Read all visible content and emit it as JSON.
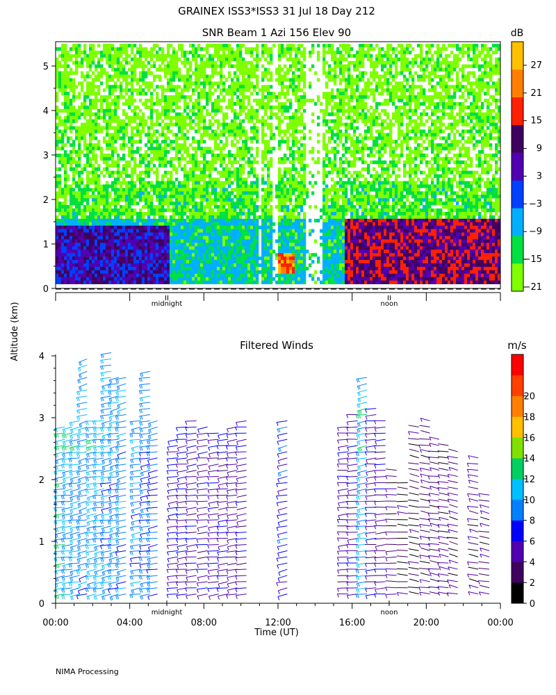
{
  "page": {
    "title": "GRAINEX ISS3*ISS3  31 Jul 18 Day 212",
    "shared_ylabel": "Altitude (km)",
    "footer": "NIMA Processing"
  },
  "chart_data": [
    {
      "type": "heatmap",
      "title": "SNR Beam 1 Azi 156 Elev 90",
      "ylabel": "Altitude (km)",
      "ylim": [
        0,
        5.5
      ],
      "yticks": [
        "0",
        "1",
        "2",
        "3",
        "4",
        "5"
      ],
      "xlim_hours": [
        0,
        24
      ],
      "x_annotations": [
        "midnight",
        "noon"
      ],
      "colorbar": {
        "unit": "dB",
        "tick_labels": [
          "27",
          "21",
          "15",
          "9",
          "3",
          "−3",
          "−9",
          "−15",
          "−21"
        ],
        "colors": [
          "#7fff00",
          "#00e040",
          "#00b0ff",
          "#0040ff",
          "#5000b0",
          "#400060",
          "#ff2000",
          "#ff8000",
          "#ffc000"
        ]
      },
      "profile_description": {
        "background_db": -21,
        "layers": [
          {
            "alt_low_km": 0.1,
            "alt_high_km": 1.4,
            "db": [
              -3,
              9
            ],
            "hours": [
              0,
              6
            ],
            "note": "strong low-level boundary layer echo, early hours"
          },
          {
            "alt_low_km": 0.1,
            "alt_high_km": 1.6,
            "db": [
              3,
              15
            ],
            "hours": [
              15.5,
              24
            ],
            "note": "growing afternoon boundary layer"
          },
          {
            "alt_low_km": 0.3,
            "alt_high_km": 0.8,
            "db": [
              15,
              27
            ],
            "hours": [
              12,
              12.8
            ],
            "note": "peak echo"
          }
        ]
      }
    },
    {
      "type": "scatter",
      "title": "Filtered Winds",
      "xlabel": "Time (UT)",
      "ylabel": "Altitude (km)",
      "ylim": [
        0,
        4
      ],
      "yticks": [
        "0",
        "1",
        "2",
        "3",
        "4"
      ],
      "xticks": [
        "00:00",
        "04:00",
        "08:00",
        "12:00",
        "16:00",
        "20:00",
        "00:00"
      ],
      "x_annotations": [
        "midnight",
        "noon"
      ],
      "colorbar": {
        "unit": "m/s",
        "tick_labels": [
          "20",
          "18",
          "16",
          "14",
          "12",
          "10",
          "8",
          "6",
          "4",
          "2",
          "0"
        ],
        "colors": [
          "#000000",
          "#400060",
          "#5000b0",
          "#0000ff",
          "#0080ff",
          "#00c0ff",
          "#00d060",
          "#80e000",
          "#ffc000",
          "#ff8000",
          "#ff4000",
          "#ff0000"
        ]
      },
      "wind_profiles": [
        {
          "hour": 0.5,
          "top_km": 2.9,
          "speed": 9,
          "dir": 250
        },
        {
          "hour": 0.9,
          "top_km": 2.9,
          "speed": 8,
          "dir": 250
        },
        {
          "hour": 1.3,
          "top_km": 3.0,
          "speed": 8,
          "dir": 250
        },
        {
          "hour": 1.7,
          "top_km": 4.0,
          "speed": 7,
          "dir": 240
        },
        {
          "hour": 2.2,
          "top_km": 3.0,
          "speed": 8,
          "dir": 250
        },
        {
          "hour": 2.6,
          "top_km": 3.0,
          "speed": 8,
          "dir": 250
        },
        {
          "hour": 3.0,
          "top_km": 4.1,
          "speed": 7,
          "dir": 245
        },
        {
          "hour": 3.4,
          "top_km": 3.7,
          "speed": 7,
          "dir": 245
        },
        {
          "hour": 3.8,
          "top_km": 3.7,
          "speed": 7,
          "dir": 245
        },
        {
          "hour": 4.6,
          "top_km": 3.0,
          "speed": 7,
          "dir": 250
        },
        {
          "hour": 5.1,
          "top_km": 3.8,
          "speed": 6,
          "dir": 250
        },
        {
          "hour": 5.5,
          "top_km": 3.0,
          "speed": 6,
          "dir": 250
        },
        {
          "hour": 6.6,
          "top_km": 2.7,
          "speed": 4,
          "dir": 255
        },
        {
          "hour": 7.1,
          "top_km": 2.9,
          "speed": 4,
          "dir": 255
        },
        {
          "hour": 7.6,
          "top_km": 3.0,
          "speed": 3,
          "dir": 255
        },
        {
          "hour": 8.2,
          "top_km": 2.9,
          "speed": 3,
          "dir": 255
        },
        {
          "hour": 8.8,
          "top_km": 2.8,
          "speed": 3,
          "dir": 255
        },
        {
          "hour": 9.3,
          "top_km": 2.8,
          "speed": 3,
          "dir": 255
        },
        {
          "hour": 9.8,
          "top_km": 2.9,
          "speed": 3,
          "dir": 255
        },
        {
          "hour": 10.3,
          "top_km": 3.0,
          "speed": 3,
          "dir": 255
        },
        {
          "hour": 12.5,
          "top_km": 3.0,
          "speed": 5,
          "dir": 245
        },
        {
          "hour": 15.8,
          "top_km": 2.9,
          "speed": 3,
          "dir": 260
        },
        {
          "hour": 16.3,
          "top_km": 3.1,
          "speed": 3,
          "dir": 260
        },
        {
          "hour": 16.8,
          "top_km": 3.7,
          "speed": 8,
          "dir": 250
        },
        {
          "hour": 17.3,
          "top_km": 3.2,
          "speed": 3,
          "dir": 260
        },
        {
          "hour": 17.8,
          "top_km": 3.0,
          "speed": 3,
          "dir": 260
        },
        {
          "hour": 18.4,
          "top_km": 2.2,
          "speed": 2,
          "dir": 270
        },
        {
          "hour": 19.0,
          "top_km": 2.0,
          "speed": 1,
          "dir": 280
        },
        {
          "hour": 19.6,
          "top_km": 2.9,
          "speed": 1,
          "dir": 290
        },
        {
          "hour": 20.2,
          "top_km": 3.0,
          "speed": 2,
          "dir": 290
        },
        {
          "hour": 20.7,
          "top_km": 2.7,
          "speed": 2,
          "dir": 290
        },
        {
          "hour": 21.2,
          "top_km": 2.6,
          "speed": 2,
          "dir": 290
        },
        {
          "hour": 21.7,
          "top_km": 2.5,
          "speed": 2,
          "dir": 295
        },
        {
          "hour": 22.8,
          "top_km": 2.4,
          "speed": 2,
          "dir": 295
        },
        {
          "hour": 23.4,
          "top_km": 1.8,
          "speed": 2,
          "dir": 295
        }
      ]
    }
  ]
}
